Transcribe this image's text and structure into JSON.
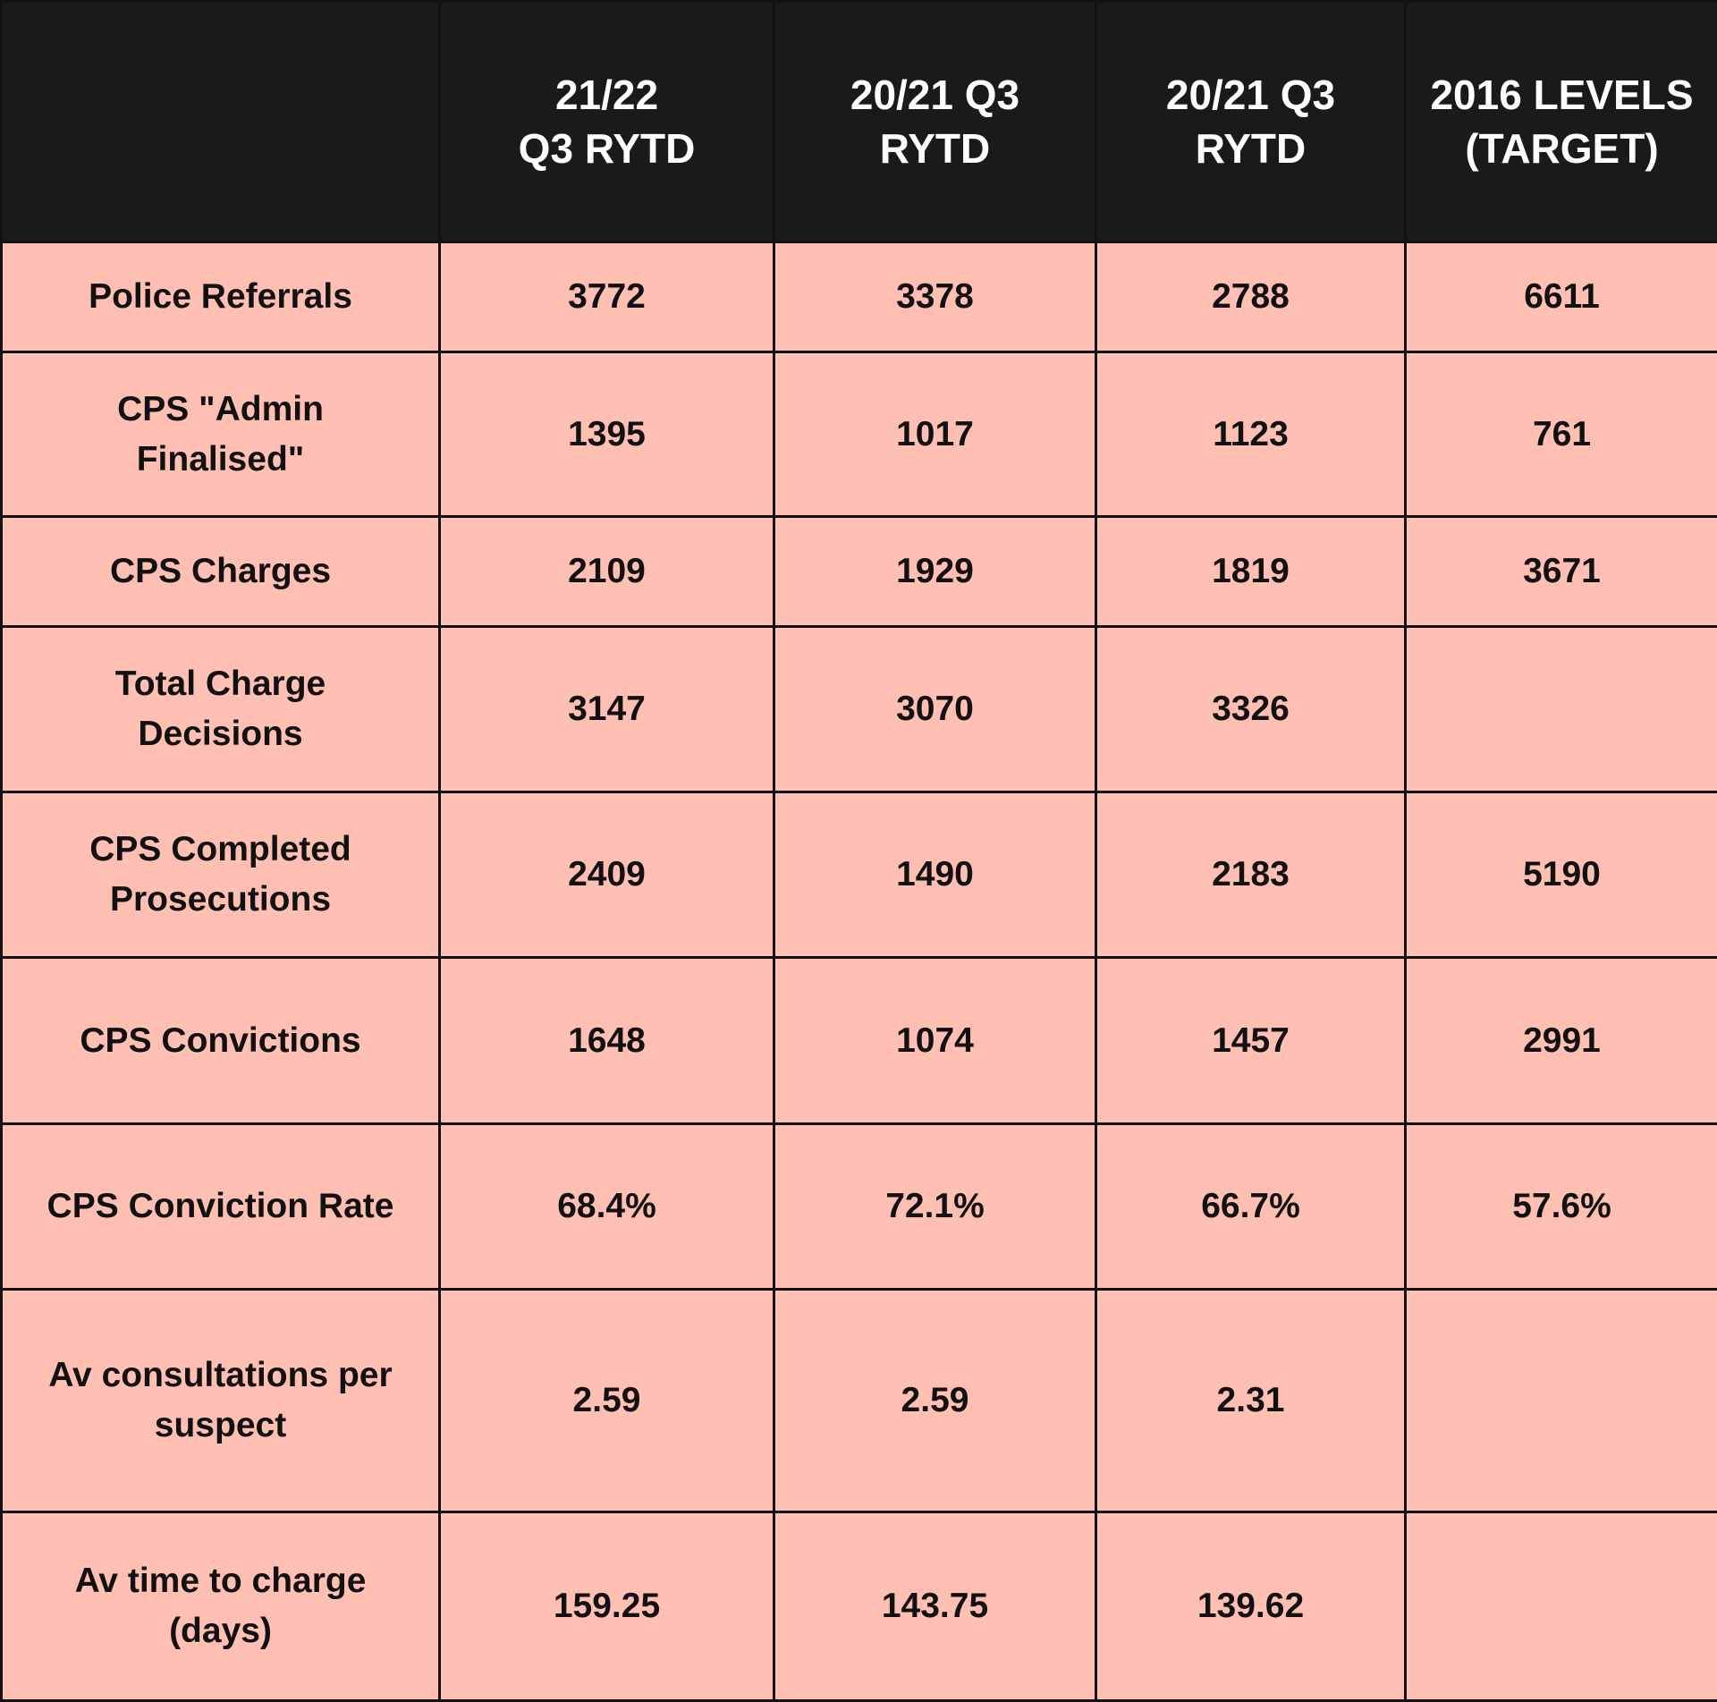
{
  "table": {
    "header": [
      null,
      "21/22\nQ3 RYTD",
      "20/21 Q3\nRYTD",
      "20/21 Q3\nRYTD",
      "2016 LEVELS\n(TARGET)"
    ],
    "rows": [
      [
        "Police Referrals",
        "3772",
        "3378",
        "2788",
        "6611"
      ],
      [
        "CPS \"Admin\nFinalised\"",
        "1395",
        "1017",
        "1123",
        "761"
      ],
      [
        "CPS Charges",
        "2109",
        "1929",
        "1819",
        "3671"
      ],
      [
        "Total Charge\nDecisions",
        "3147",
        "3070",
        "3326",
        null
      ],
      [
        "CPS Completed\nProsecutions",
        "2409",
        "1490",
        "2183",
        "5190"
      ],
      [
        "CPS Convictions",
        "1648",
        "1074",
        "1457",
        "2991"
      ],
      [
        "CPS Conviction Rate",
        "68.4%",
        "72.1%",
        "66.7%",
        "57.6%"
      ],
      [
        "Av consultations per\nsuspect",
        "2.59",
        "2.59",
        "2.31",
        null
      ],
      [
        "Av time to charge\n(days)",
        "159.25",
        "143.75",
        "139.62",
        null
      ]
    ]
  }
}
